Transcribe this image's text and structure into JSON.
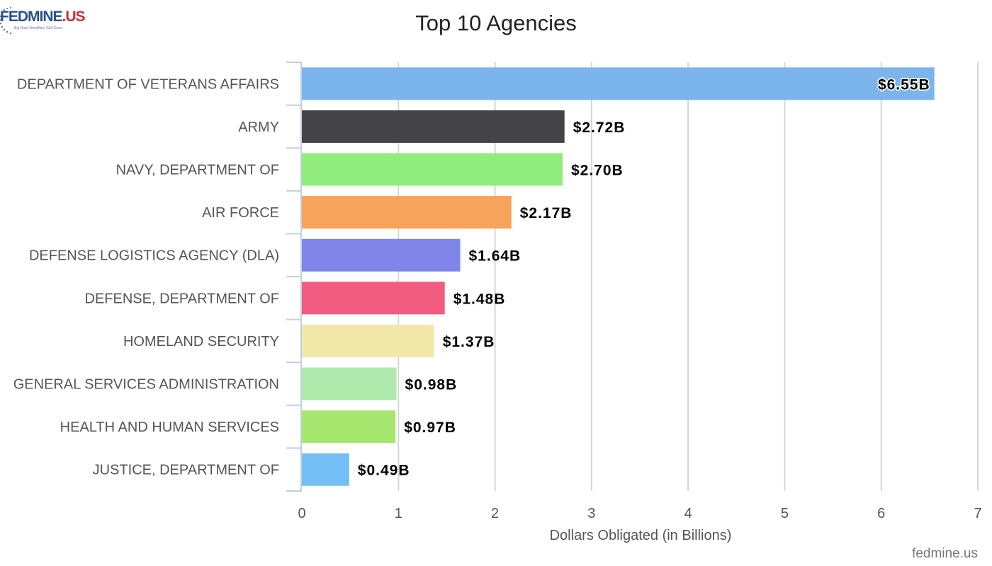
{
  "brand": {
    "logo_main": "FEDMINE",
    "logo_suffix": ".US",
    "logo_tagline": "Big Data Simplified. Well Done."
  },
  "credit": "fedmine.us",
  "chart_data": {
    "type": "bar",
    "orientation": "horizontal",
    "title": "Top 10 Agencies",
    "xlabel": "Dollars Obligated (in Billions)",
    "ylabel": "",
    "xlim": [
      0,
      7
    ],
    "xticks": [
      0,
      1,
      2,
      3,
      4,
      5,
      6,
      7
    ],
    "grid": true,
    "categories": [
      "DEPARTMENT OF VETERANS AFFAIRS",
      "ARMY",
      "NAVY, DEPARTMENT OF",
      "AIR FORCE",
      "DEFENSE LOGISTICS AGENCY (DLA)",
      "DEFENSE, DEPARTMENT OF",
      "HOMELAND SECURITY",
      "GENERAL SERVICES ADMINISTRATION",
      "HEALTH AND HUMAN SERVICES",
      "JUSTICE, DEPARTMENT OF"
    ],
    "values": [
      6.55,
      2.72,
      2.7,
      2.17,
      1.64,
      1.48,
      1.37,
      0.98,
      0.97,
      0.49
    ],
    "data_labels": [
      "$6.55B",
      "$2.72B",
      "$2.70B",
      "$2.17B",
      "$1.64B",
      "$1.48B",
      "$1.37B",
      "$0.98B",
      "$0.97B",
      "$0.49B"
    ],
    "colors": [
      "#7cb5ec",
      "#434348",
      "#90ed7d",
      "#f7a35c",
      "#8085e9",
      "#f15c80",
      "#f1e8aa",
      "#aee8aa",
      "#a8e76f",
      "#74c0f6"
    ]
  }
}
